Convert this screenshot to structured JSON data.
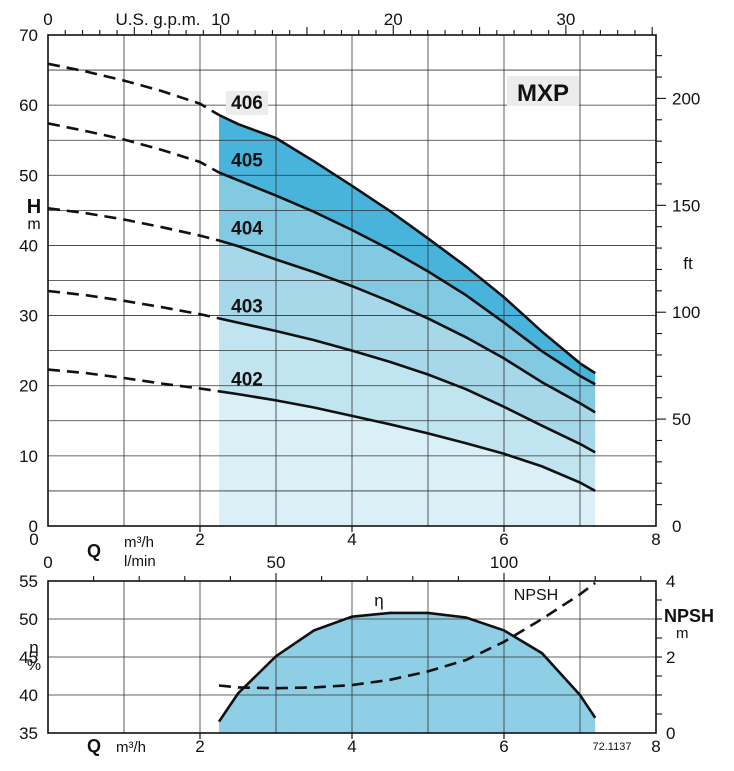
{
  "chart_data": [
    {
      "type": "line",
      "title": "MXP",
      "y_label_main": "H",
      "y_label_unit": "m",
      "right_unit": "ft",
      "top_unit": "U.S. g.p.m.",
      "x_label_main": "Q",
      "x_unit_primary": "m³/h",
      "x_unit_secondary": "l/min",
      "xlim": [
        0,
        8
      ],
      "ylim": [
        0,
        70
      ],
      "ylim_ft": [
        0,
        229.66
      ],
      "ylim_top_gpm": [
        0,
        35.22
      ],
      "grid": true,
      "x_ticks": [
        "0",
        "2",
        "4",
        "6",
        "8"
      ],
      "y_ticks": [
        "0",
        "10",
        "20",
        "30",
        "40",
        "50",
        "60",
        "70"
      ],
      "ft_ticks": [
        "0",
        "50",
        "100",
        "150",
        "200"
      ],
      "gpm_ticks": [
        "0",
        "10",
        "20",
        "30"
      ],
      "lmin_ticks": [
        "0",
        "50",
        "100"
      ],
      "operating_range": [
        2.25,
        7.2
      ],
      "series": [
        {
          "name": "402",
          "x": [
            0,
            0.5,
            1,
            1.5,
            2,
            2.25,
            2.5,
            3,
            3.5,
            4,
            4.5,
            5,
            5.5,
            6,
            6.5,
            7,
            7.2
          ],
          "y": [
            22.3,
            21.8,
            21.1,
            20.3,
            19.6,
            19.2,
            18.8,
            17.9,
            16.9,
            15.7,
            14.5,
            13.2,
            11.8,
            10.3,
            8.5,
            6.2,
            5.0
          ]
        },
        {
          "name": "403",
          "x": [
            0,
            0.5,
            1,
            1.5,
            2,
            2.25,
            2.5,
            3,
            3.5,
            4,
            4.5,
            5,
            5.5,
            6,
            6.5,
            7,
            7.2
          ],
          "y": [
            33.5,
            32.9,
            32.1,
            31.2,
            30.2,
            29.6,
            29.0,
            27.8,
            26.5,
            25.0,
            23.4,
            21.6,
            19.5,
            17.0,
            14.3,
            11.7,
            10.5
          ]
        },
        {
          "name": "404",
          "x": [
            0,
            0.5,
            1,
            1.5,
            2,
            2.25,
            2.5,
            3,
            3.5,
            4,
            4.5,
            5,
            5.5,
            6,
            6.5,
            7,
            7.2
          ],
          "y": [
            45.3,
            44.6,
            43.7,
            42.6,
            41.4,
            40.7,
            39.9,
            38.0,
            36.2,
            34.2,
            32.0,
            29.6,
            26.9,
            23.9,
            20.5,
            17.5,
            16.2
          ]
        },
        {
          "name": "405",
          "x": [
            0,
            0.5,
            1,
            1.5,
            2,
            2.25,
            2.5,
            3,
            3.5,
            4,
            4.5,
            5,
            5.5,
            6,
            6.5,
            7,
            7.2
          ],
          "y": [
            57.4,
            56.3,
            55.1,
            53.6,
            51.9,
            50.4,
            49.3,
            47.1,
            44.8,
            42.2,
            39.4,
            36.3,
            32.9,
            29.0,
            24.9,
            21.4,
            20.2
          ]
        },
        {
          "name": "406",
          "x": [
            0,
            0.5,
            1,
            1.5,
            2,
            2.25,
            2.5,
            3,
            3.5,
            4,
            4.5,
            5,
            5.5,
            6,
            6.5,
            7,
            7.2
          ],
          "y": [
            65.9,
            64.8,
            63.5,
            62.0,
            60.2,
            58.6,
            57.3,
            55.3,
            52.0,
            48.5,
            44.9,
            41.0,
            37.0,
            32.6,
            27.7,
            23.2,
            21.8
          ]
        }
      ]
    },
    {
      "type": "line",
      "y_label_left_main": "η",
      "y_label_left_unit": "%",
      "y_label_right_main": "NPSH",
      "y_label_right_unit": "m",
      "x_label_main": "Q",
      "x_unit": "m³/h",
      "figure_code": "72.1137",
      "xlim": [
        0,
        8
      ],
      "ylim": [
        35,
        55
      ],
      "ylim_right": [
        0,
        4
      ],
      "grid": true,
      "x_ticks": [
        "0",
        "2",
        "4",
        "6",
        "8"
      ],
      "y_ticks": [
        "35",
        "40",
        "45",
        "50",
        "55"
      ],
      "npsh_ticks": [
        "0",
        "2",
        "4"
      ],
      "series": [
        {
          "name": "η",
          "x": [
            2.25,
            2.5,
            3,
            3.5,
            4,
            4.5,
            5,
            5.5,
            6,
            6.5,
            7,
            7.2
          ],
          "y": [
            36.5,
            40.2,
            45.1,
            48.5,
            50.3,
            50.8,
            50.8,
            50.2,
            48.5,
            45.5,
            40.0,
            37.0
          ]
        },
        {
          "name": "NPSH",
          "x": [
            2.25,
            2.5,
            3,
            3.5,
            4,
            4.5,
            5,
            5.5,
            6,
            6.5,
            7,
            7.2
          ],
          "y": [
            1.25,
            1.2,
            1.18,
            1.2,
            1.26,
            1.4,
            1.62,
            1.92,
            2.4,
            3.0,
            3.65,
            3.95
          ]
        }
      ]
    }
  ]
}
